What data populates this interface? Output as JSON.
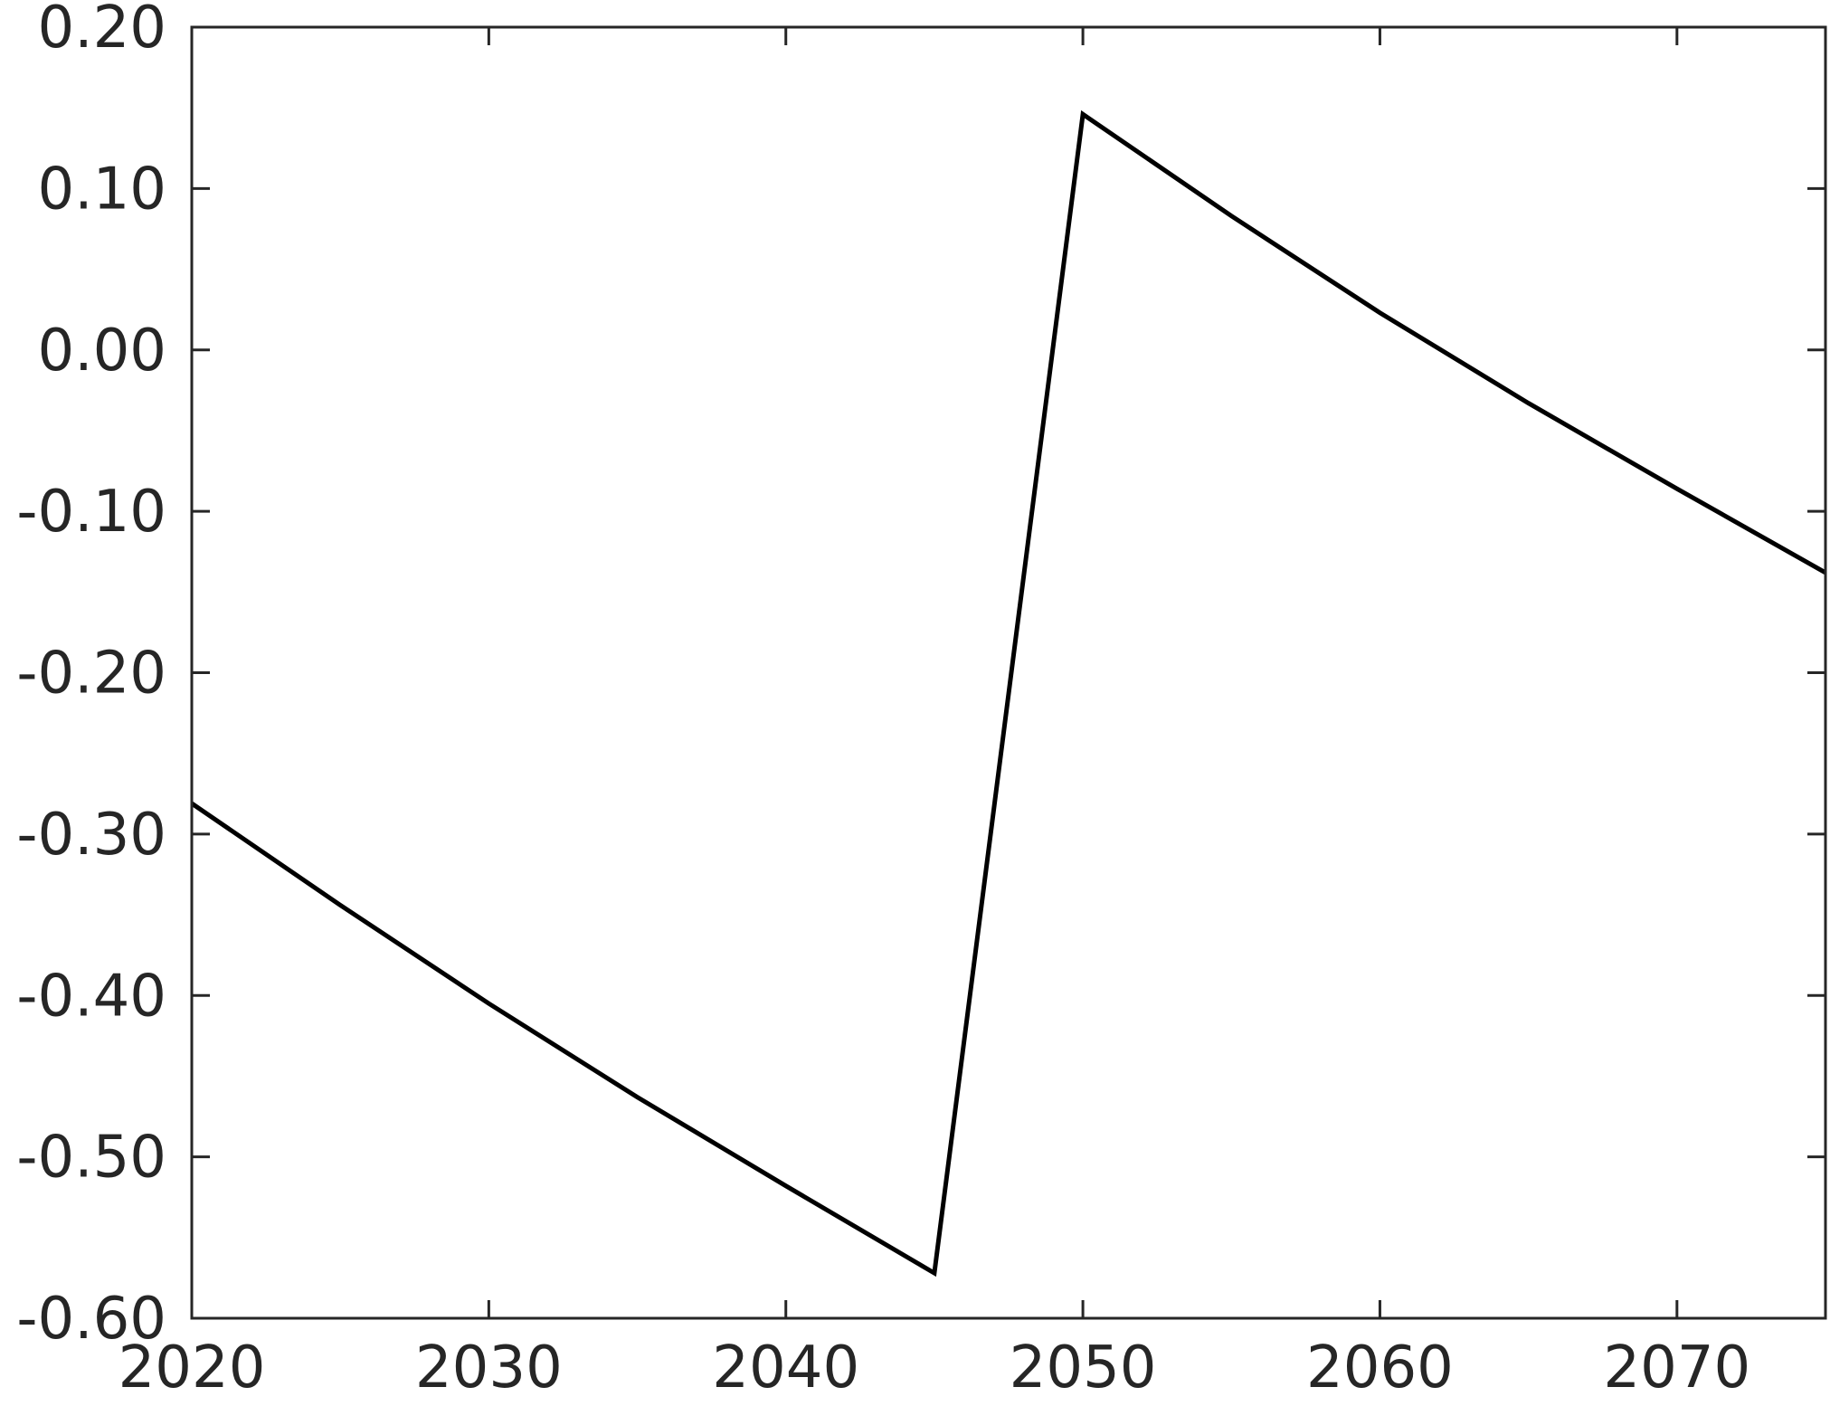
{
  "chart_data": {
    "type": "line",
    "title": "",
    "xlabel": "",
    "ylabel": "",
    "xlim": [
      2020,
      2075
    ],
    "ylim": [
      -0.6,
      0.2
    ],
    "grid": false,
    "x_ticks": [
      2020,
      2030,
      2040,
      2050,
      2060,
      2070
    ],
    "x_tick_labels": [
      "2020",
      "2030",
      "2040",
      "2050",
      "2060",
      "2070"
    ],
    "y_ticks": [
      -0.6,
      -0.5,
      -0.4,
      -0.3,
      -0.2,
      -0.1,
      0.0,
      0.1,
      0.2
    ],
    "y_tick_labels": [
      "-0.60",
      "-0.50",
      "-0.40",
      "-0.30",
      "-0.20",
      "-0.10",
      "0.00",
      "0.10",
      "0.20"
    ],
    "series": [
      {
        "color": "#000000",
        "x": [
          2020,
          2025,
          2030,
          2035,
          2040,
          2045,
          2050,
          2055,
          2060,
          2065,
          2070,
          2075
        ],
        "y": [
          -0.281,
          -0.344,
          -0.405,
          -0.463,
          -0.518,
          -0.572,
          0.146,
          0.083,
          0.023,
          -0.033,
          -0.086,
          -0.138
        ]
      }
    ]
  }
}
